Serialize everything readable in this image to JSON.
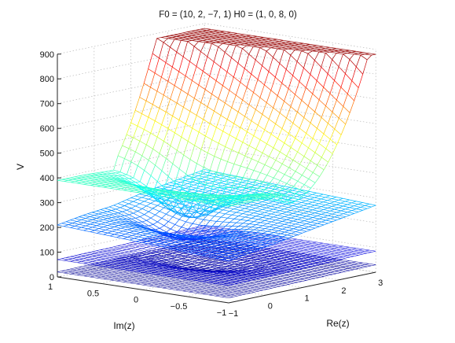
{
  "chart_data": {
    "type": "surface",
    "title": "F0 = (10, 2, −7, 1) H0 = (1, 0, 8, 0)",
    "xlabel": "Re(z)",
    "ylabel": "Im(z)",
    "zlabel": "V",
    "xlim": [
      -1,
      3
    ],
    "ylim": [
      -1,
      1
    ],
    "zlim": [
      0,
      900
    ],
    "x_ticks": [
      "−1",
      "0",
      "1",
      "2",
      "3"
    ],
    "y_ticks": [
      "1",
      "0.5",
      "0",
      "−0.5",
      "−1"
    ],
    "z_ticks": [
      "0",
      "100",
      "200",
      "300",
      "400",
      "500",
      "600",
      "700",
      "800",
      "900"
    ],
    "colormap": "jet",
    "grid": true,
    "sheets": [
      {
        "name": "",
        "base_level": 20
      },
      {
        "name": "",
        "base_level": 70
      },
      {
        "name": "",
        "base_level": 190
      },
      {
        "name": "",
        "base_level": 390
      }
    ]
  }
}
